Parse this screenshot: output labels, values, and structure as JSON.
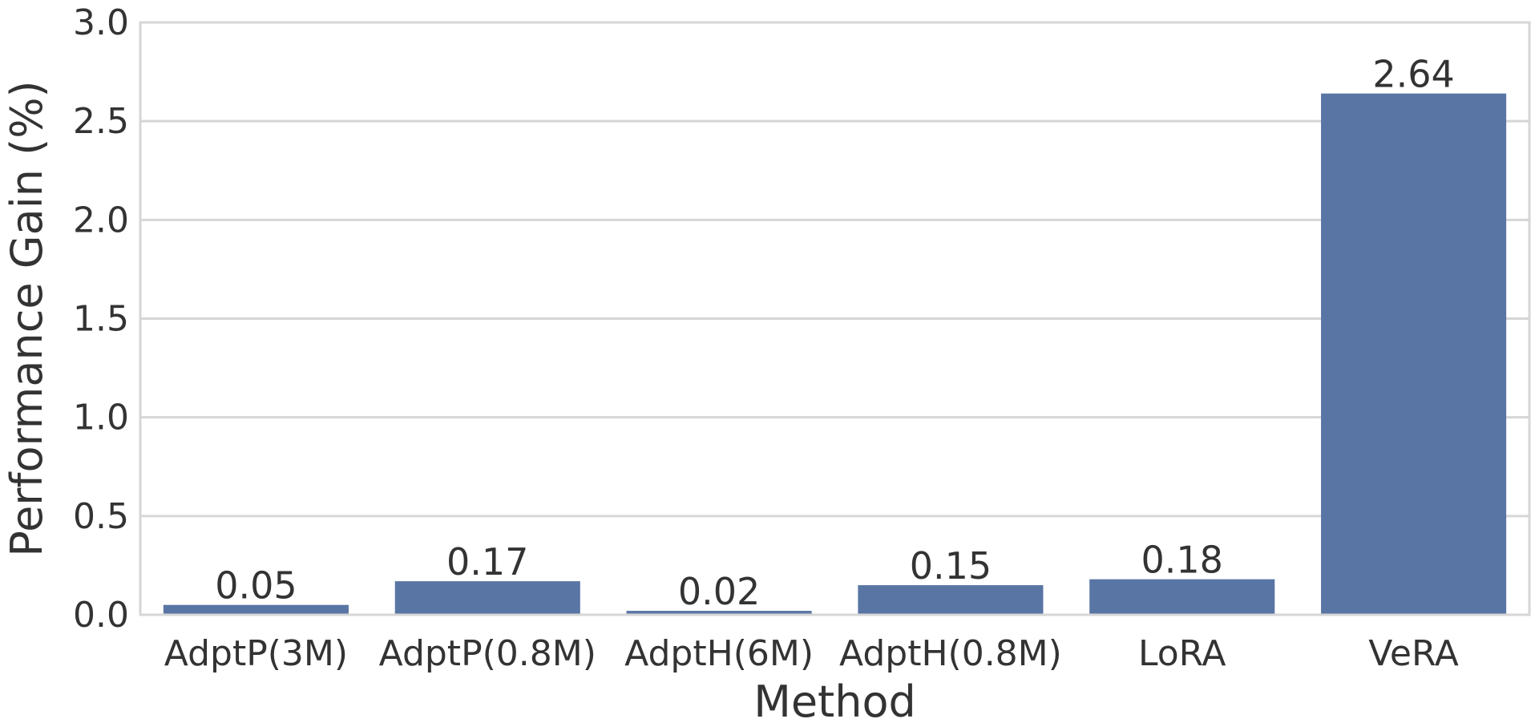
{
  "chart_data": {
    "type": "bar",
    "title": "",
    "xlabel": "Method",
    "ylabel": "Performance Gain (%)",
    "categories": [
      "AdptP(3M)",
      "AdptP(0.8M)",
      "AdptH(6M)",
      "AdptH(0.8M)",
      "LoRA",
      "VeRA"
    ],
    "values": [
      0.05,
      0.17,
      0.02,
      0.15,
      0.18,
      2.64
    ],
    "value_labels": [
      "0.05",
      "0.17",
      "0.02",
      "0.15",
      "0.18",
      "2.64"
    ],
    "ylim": [
      0,
      3.0
    ],
    "yticks": [
      0.0,
      0.5,
      1.0,
      1.5,
      2.0,
      2.5,
      3.0
    ],
    "ytick_labels": [
      "0.0",
      "0.5",
      "1.0",
      "1.5",
      "2.0",
      "2.5",
      "3.0"
    ],
    "grid": true,
    "bar_color": "#5975a4",
    "grid_color": "#d6d6d6",
    "text_color": "#333333"
  }
}
